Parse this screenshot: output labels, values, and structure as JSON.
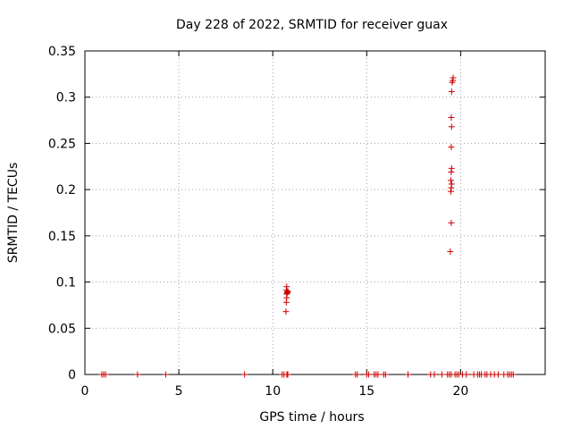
{
  "chart_data": {
    "type": "scatter",
    "title": "Day 228 of 2022, SRMTID for receiver guax",
    "xlabel": "GPS time / hours",
    "ylabel": "SRMTID / TECUs",
    "xlim": [
      0,
      24.5
    ],
    "ylim": [
      0,
      0.35
    ],
    "x_ticks": [
      0,
      5,
      10,
      15,
      20
    ],
    "x_tick_labels": [
      "0",
      "5",
      "10",
      "15",
      "20"
    ],
    "y_ticks": [
      0,
      0.05,
      0.1,
      0.15,
      0.2,
      0.25,
      0.3,
      0.35
    ],
    "y_tick_labels": [
      "0",
      "0.05",
      "0.1",
      "0.15",
      "0.2",
      "0.25",
      "0.3",
      "0.35"
    ],
    "grid": true,
    "marker": "+",
    "series": [
      {
        "name": "SRMTID",
        "color": "#cc0000",
        "points": [
          [
            0.9,
            0
          ],
          [
            1.0,
            0
          ],
          [
            1.1,
            0
          ],
          [
            2.8,
            0
          ],
          [
            4.3,
            0
          ],
          [
            8.5,
            0
          ],
          [
            10.5,
            0
          ],
          [
            10.6,
            0
          ],
          [
            10.75,
            0
          ],
          [
            10.8,
            0
          ],
          [
            10.7,
            0.068
          ],
          [
            10.72,
            0.078
          ],
          [
            10.74,
            0.083
          ],
          [
            10.75,
            0.087
          ],
          [
            10.76,
            0.088
          ],
          [
            10.78,
            0.089
          ],
          [
            10.8,
            0.09
          ],
          [
            10.72,
            0.091
          ],
          [
            10.74,
            0.095
          ],
          [
            14.4,
            0
          ],
          [
            14.5,
            0
          ],
          [
            15.0,
            0
          ],
          [
            15.1,
            0
          ],
          [
            15.4,
            0
          ],
          [
            15.5,
            0
          ],
          [
            15.6,
            0
          ],
          [
            15.9,
            0
          ],
          [
            16.0,
            0
          ],
          [
            17.2,
            0
          ],
          [
            18.4,
            0
          ],
          [
            18.6,
            0
          ],
          [
            19.0,
            0
          ],
          [
            19.3,
            0
          ],
          [
            19.4,
            0
          ],
          [
            19.5,
            0
          ],
          [
            19.7,
            0
          ],
          [
            19.8,
            0
          ],
          [
            19.9,
            0
          ],
          [
            20.1,
            0
          ],
          [
            20.3,
            0
          ],
          [
            20.7,
            0
          ],
          [
            20.9,
            0
          ],
          [
            21.0,
            0
          ],
          [
            21.1,
            0
          ],
          [
            21.3,
            0
          ],
          [
            21.4,
            0
          ],
          [
            21.6,
            0
          ],
          [
            21.8,
            0
          ],
          [
            22.0,
            0
          ],
          [
            22.3,
            0
          ],
          [
            22.5,
            0
          ],
          [
            22.6,
            0
          ],
          [
            22.7,
            0
          ],
          [
            22.8,
            0
          ],
          [
            19.45,
            0.133
          ],
          [
            19.5,
            0.164
          ],
          [
            19.48,
            0.198
          ],
          [
            19.5,
            0.202
          ],
          [
            19.52,
            0.206
          ],
          [
            19.48,
            0.21
          ],
          [
            19.5,
            0.219
          ],
          [
            19.52,
            0.223
          ],
          [
            19.5,
            0.246
          ],
          [
            19.52,
            0.268
          ],
          [
            19.5,
            0.278
          ],
          [
            19.52,
            0.306
          ],
          [
            19.55,
            0.316
          ],
          [
            19.58,
            0.318
          ],
          [
            19.6,
            0.321
          ]
        ]
      }
    ]
  }
}
